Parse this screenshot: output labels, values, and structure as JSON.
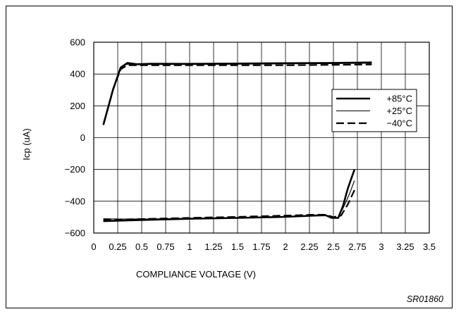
{
  "chart_data": {
    "type": "line",
    "title": "",
    "xlabel": "COMPLIANCE VOLTAGE (V)",
    "ylabel": "Icp (uA)",
    "xlim": [
      0,
      3.5
    ],
    "ylim": [
      -600,
      600
    ],
    "grid": true,
    "legend_position": "right",
    "x_ticks": [
      0,
      0.25,
      0.5,
      0.75,
      1,
      1.25,
      1.5,
      1.75,
      2,
      2.25,
      2.5,
      2.75,
      3,
      3.25,
      3.5
    ],
    "x_tick_labels": [
      "0",
      "0.25",
      "0.5",
      "0.75",
      "1",
      "1.25",
      "1.5",
      "1.75",
      "2",
      "2.25",
      "2.5",
      "2.75",
      "3",
      "3.25",
      "3.5"
    ],
    "y_ticks": [
      -600,
      -400,
      -200,
      0,
      200,
      400,
      600
    ],
    "y_tick_labels": [
      "−600",
      "−400",
      "−200",
      "0",
      "200",
      "400",
      "600"
    ],
    "series": [
      {
        "name": "+85°C",
        "style": "thick-solid",
        "segments": [
          [
            [
              0.1,
              80
            ],
            [
              0.2,
              300
            ],
            [
              0.28,
              440
            ],
            [
              0.35,
              470
            ],
            [
              0.45,
              462
            ],
            [
              0.6,
              465
            ],
            [
              1.0,
              464
            ],
            [
              1.5,
              466
            ],
            [
              2.0,
              468
            ],
            [
              2.5,
              470
            ],
            [
              2.9,
              473
            ]
          ],
          [
            [
              0.1,
              -525
            ],
            [
              0.25,
              -522
            ],
            [
              0.5,
              -518
            ],
            [
              1.0,
              -510
            ],
            [
              1.5,
              -505
            ],
            [
              2.0,
              -498
            ],
            [
              2.3,
              -490
            ],
            [
              2.42,
              -488
            ],
            [
              2.48,
              -505
            ],
            [
              2.55,
              -505
            ],
            [
              2.6,
              -430
            ],
            [
              2.65,
              -320
            ],
            [
              2.72,
              -200
            ]
          ]
        ]
      },
      {
        "name": "+25°C",
        "style": "thin-solid",
        "segments": [
          [
            [
              0.1,
              80
            ],
            [
              0.2,
              310
            ],
            [
              0.28,
              445
            ],
            [
              0.35,
              462
            ],
            [
              0.45,
              458
            ],
            [
              0.6,
              460
            ],
            [
              1.0,
              460
            ],
            [
              1.5,
              462
            ],
            [
              2.0,
              464
            ],
            [
              2.5,
              466
            ],
            [
              2.9,
              468
            ]
          ],
          [
            [
              0.1,
              -510
            ],
            [
              0.25,
              -512
            ],
            [
              0.5,
              -512
            ],
            [
              1.0,
              -508
            ],
            [
              1.5,
              -503
            ],
            [
              2.0,
              -496
            ],
            [
              2.3,
              -490
            ],
            [
              2.42,
              -488
            ],
            [
              2.48,
              -505
            ],
            [
              2.55,
              -505
            ],
            [
              2.62,
              -420
            ],
            [
              2.67,
              -350
            ],
            [
              2.72,
              -270
            ]
          ]
        ]
      },
      {
        "name": "−40°C",
        "style": "dashed",
        "segments": [
          [
            [
              0.1,
              80
            ],
            [
              0.2,
              300
            ],
            [
              0.28,
              430
            ],
            [
              0.35,
              455
            ],
            [
              0.45,
              455
            ],
            [
              0.6,
              455
            ],
            [
              1.0,
              455
            ],
            [
              1.5,
              455
            ],
            [
              2.0,
              455
            ],
            [
              2.5,
              458
            ],
            [
              2.9,
              460
            ]
          ],
          [
            [
              0.1,
              -515
            ],
            [
              0.25,
              -515
            ],
            [
              0.5,
              -512
            ],
            [
              1.0,
              -505
            ],
            [
              1.5,
              -498
            ],
            [
              2.0,
              -490
            ],
            [
              2.3,
              -485
            ],
            [
              2.42,
              -485
            ],
            [
              2.5,
              -500
            ],
            [
              2.58,
              -490
            ],
            [
              2.65,
              -420
            ],
            [
              2.72,
              -330
            ]
          ]
        ]
      }
    ],
    "annotation": "SR01860"
  }
}
